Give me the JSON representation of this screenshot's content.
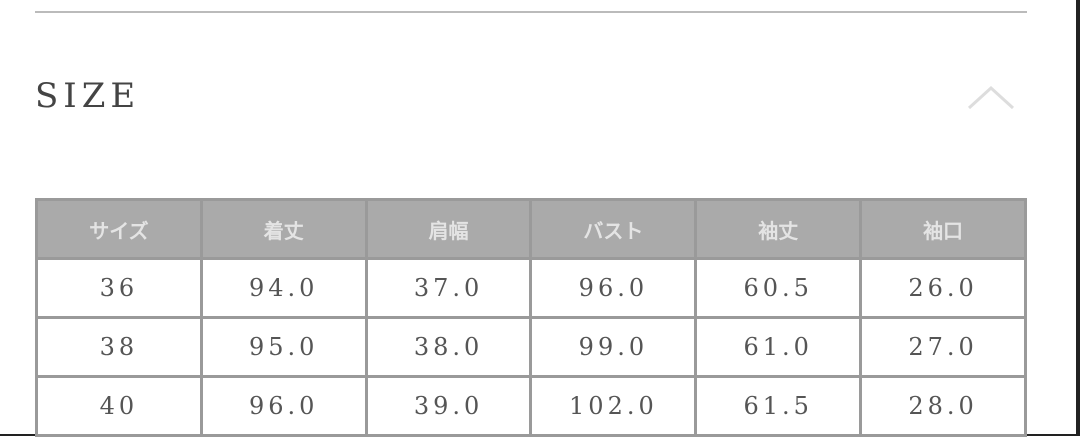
{
  "section": {
    "title": "SIZE",
    "toggle_icon": "chevron-up-icon"
  },
  "table": {
    "headers": [
      "サイズ",
      "着丈",
      "肩幅",
      "バスト",
      "袖丈",
      "袖口"
    ],
    "rows": [
      [
        "36",
        "94.0",
        "37.0",
        "96.0",
        "60.5",
        "26.0"
      ],
      [
        "38",
        "95.0",
        "38.0",
        "99.0",
        "61.0",
        "27.0"
      ],
      [
        "40",
        "96.0",
        "39.0",
        "102.0",
        "61.5",
        "28.0"
      ]
    ]
  }
}
